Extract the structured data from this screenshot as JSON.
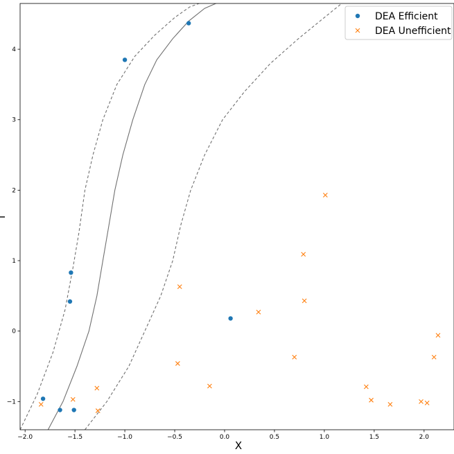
{
  "chart_data": {
    "type": "scatter",
    "title": "",
    "xlabel": "X",
    "ylabel": "",
    "xlim": [
      -2.05,
      2.3
    ],
    "ylim": [
      -1.4,
      4.65
    ],
    "x_ticks": [
      -2.0,
      -1.5,
      -1.0,
      -0.5,
      0.0,
      0.5,
      1.0,
      1.5,
      2.0
    ],
    "x_tick_labels": [
      "−2.0",
      "−1.5",
      "−1.0",
      "−0.5",
      "0.0",
      "0.5",
      "1.0",
      "1.5",
      "2.0"
    ],
    "y_ticks": [
      -1,
      0,
      1,
      2,
      3,
      4
    ],
    "y_tick_labels": [
      "−1",
      "0",
      "1",
      "2",
      "3",
      "4"
    ],
    "grid": false,
    "legend_position": "top-right",
    "series": [
      {
        "name": "DEA Efficient",
        "marker": "circle",
        "color": "#1f77b4",
        "points": [
          {
            "x": -0.36,
            "y": 4.37
          },
          {
            "x": -1.0,
            "y": 3.85
          },
          {
            "x": -1.54,
            "y": 0.83
          },
          {
            "x": -1.55,
            "y": 0.42
          },
          {
            "x": 0.06,
            "y": 0.18
          },
          {
            "x": -1.82,
            "y": -0.96
          },
          {
            "x": -1.65,
            "y": -1.12
          },
          {
            "x": -1.51,
            "y": -1.12
          }
        ]
      },
      {
        "name": "DEA Unefficient",
        "marker": "x",
        "color": "#ff7f0e",
        "points": [
          {
            "x": 1.01,
            "y": 1.93
          },
          {
            "x": 0.79,
            "y": 1.09
          },
          {
            "x": -0.45,
            "y": 0.63
          },
          {
            "x": 0.8,
            "y": 0.43
          },
          {
            "x": 0.34,
            "y": 0.27
          },
          {
            "x": 2.14,
            "y": -0.06
          },
          {
            "x": 0.7,
            "y": -0.37
          },
          {
            "x": 2.1,
            "y": -0.37
          },
          {
            "x": -0.47,
            "y": -0.46
          },
          {
            "x": -0.15,
            "y": -0.78
          },
          {
            "x": 1.42,
            "y": -0.79
          },
          {
            "x": -1.28,
            "y": -0.81
          },
          {
            "x": -1.52,
            "y": -0.97
          },
          {
            "x": 1.47,
            "y": -0.98
          },
          {
            "x": 1.97,
            "y": -1.0
          },
          {
            "x": 2.03,
            "y": -1.02
          },
          {
            "x": 1.66,
            "y": -1.04
          },
          {
            "x": -1.84,
            "y": -1.04
          },
          {
            "x": -1.27,
            "y": -1.13
          }
        ]
      }
    ],
    "lines": [
      {
        "name": "decision-boundary",
        "style": "solid",
        "color": "#707070",
        "x": [
          -1.77,
          -1.62,
          -1.48,
          -1.36,
          -1.28,
          -1.22,
          -1.16,
          -1.1,
          -1.02,
          -0.92,
          -0.8,
          -0.68,
          -0.52,
          -0.36,
          -0.2,
          -0.04
        ],
        "y": [
          -1.4,
          -1.0,
          -0.5,
          0.0,
          0.5,
          1.0,
          1.5,
          2.0,
          2.5,
          3.0,
          3.5,
          3.85,
          4.15,
          4.4,
          4.58,
          4.68
        ]
      },
      {
        "name": "margin-upper",
        "style": "dashed",
        "color": "#707070",
        "x": [
          -2.05,
          -1.88,
          -1.72,
          -1.6,
          -1.52,
          -1.46,
          -1.4,
          -1.32,
          -1.22,
          -1.08,
          -0.9,
          -0.7,
          -0.5,
          -0.35,
          -0.2
        ],
        "y": [
          -1.4,
          -0.9,
          -0.3,
          0.3,
          0.9,
          1.4,
          2.0,
          2.5,
          3.0,
          3.5,
          3.9,
          4.2,
          4.45,
          4.6,
          4.68
        ]
      },
      {
        "name": "margin-lower",
        "style": "dashed",
        "color": "#707070",
        "x": [
          -1.4,
          -1.18,
          -0.96,
          -0.8,
          -0.64,
          -0.52,
          -0.44,
          -0.34,
          -0.2,
          -0.02,
          0.2,
          0.46,
          0.74,
          1.0,
          1.2
        ],
        "y": [
          -1.4,
          -1.0,
          -0.5,
          0.0,
          0.5,
          1.0,
          1.5,
          2.0,
          2.5,
          3.0,
          3.4,
          3.8,
          4.15,
          4.45,
          4.68
        ]
      }
    ]
  }
}
